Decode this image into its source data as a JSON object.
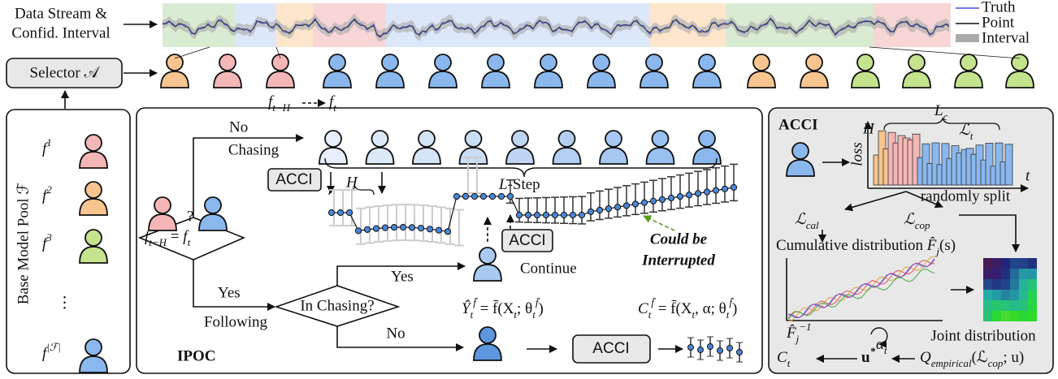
{
  "stream": {
    "label": [
      "Data Stream &",
      "Confid. Interval"
    ],
    "legend": [
      "Truth",
      "Point",
      "Interval"
    ]
  },
  "selector": {
    "label": "Selector 𝒜"
  },
  "pool": {
    "title": "Base Model Pool ℱ",
    "models": [
      [
        "f",
        "1"
      ],
      [
        "f",
        "2"
      ],
      [
        "f",
        "3"
      ],
      [
        "⋮"
      ],
      [
        "f",
        "|ℱ|"
      ]
    ]
  },
  "switch": {
    "from": [
      "f",
      "t−H"
    ],
    "to": [
      "f",
      "t"
    ]
  },
  "ipoc": {
    "title": "IPOC",
    "no_branch": [
      "No",
      "Chasing"
    ],
    "acci_top": "ACCI",
    "h": "H",
    "l_step": [
      "L",
      "-Step"
    ],
    "question": "?",
    "decision": [
      "f",
      "t−H",
      " = ",
      "f",
      "t"
    ],
    "acci_mid": "ACCI",
    "interrupted": [
      "Could be",
      "Interrupted"
    ],
    "yes_branch": [
      "Yes",
      "Following"
    ],
    "in_chasing": "In Chasing?",
    "yes_continue": "Yes",
    "continue": "Continue",
    "no_chasing": "No",
    "yhat": [
      "Ŷ",
      "t",
      "f̄",
      " = f̄(X",
      "t",
      "; θ",
      "t",
      "f̄",
      ")"
    ],
    "ct": [
      "C",
      "t",
      "f̄",
      " = f̄(X",
      "t",
      ", α; θ",
      "t",
      "f̄",
      ")"
    ],
    "acci_bottom": "ACCI"
  },
  "acci": {
    "title": "ACCI",
    "lc": [
      "L",
      "c"
    ],
    "h": "H",
    "lt": [
      "ℒ",
      "t"
    ],
    "loss": "loss",
    "t": "t",
    "split": "randomly split",
    "lcal": [
      "ℒ",
      "cal"
    ],
    "lcop": [
      "ℒ",
      "cop"
    ],
    "cumulative": [
      "Cumulative distribution ",
      "F̂",
      "j",
      "(s)"
    ],
    "finv": [
      "F̂",
      "j",
      "−1"
    ],
    "alpha": [
      "α",
      "t"
    ],
    "joint": "Joint distribution",
    "q": [
      "Q",
      "empirical",
      "(ℒ",
      "cop",
      "; u)"
    ],
    "ct": [
      "C",
      "t"
    ],
    "ustar": [
      "u",
      "*"
    ]
  }
}
